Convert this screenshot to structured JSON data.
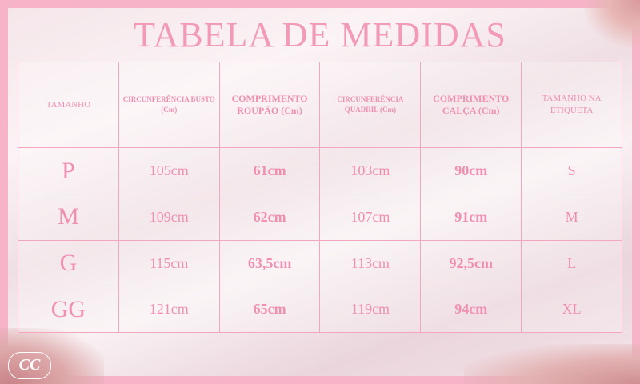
{
  "title": "TABELA DE MEDIDAS",
  "logo": "CC",
  "colors": {
    "accent": "#f08fb2",
    "frame": "#f7b3c8"
  },
  "table": {
    "headers": [
      "TAMANHO",
      "CIRCUNFERÊNCIA BUSTO (Cm)",
      "COMPRIMENTO ROUPÃO (Cm)",
      "CIRCUNFERÊNCIA QUADRIL (Cm)",
      "COMPRIMENTO CALÇA (Cm)",
      "TAMANHO NA ETIQUETA"
    ],
    "rows": [
      [
        "P",
        "105cm",
        "61cm",
        "103cm",
        "90cm",
        "S"
      ],
      [
        "M",
        "109cm",
        "62cm",
        "107cm",
        "91cm",
        "M"
      ],
      [
        "G",
        "115cm",
        "63,5cm",
        "113cm",
        "92,5cm",
        "L"
      ],
      [
        "GG",
        "121cm",
        "65cm",
        "119cm",
        "94cm",
        "XL"
      ]
    ]
  }
}
